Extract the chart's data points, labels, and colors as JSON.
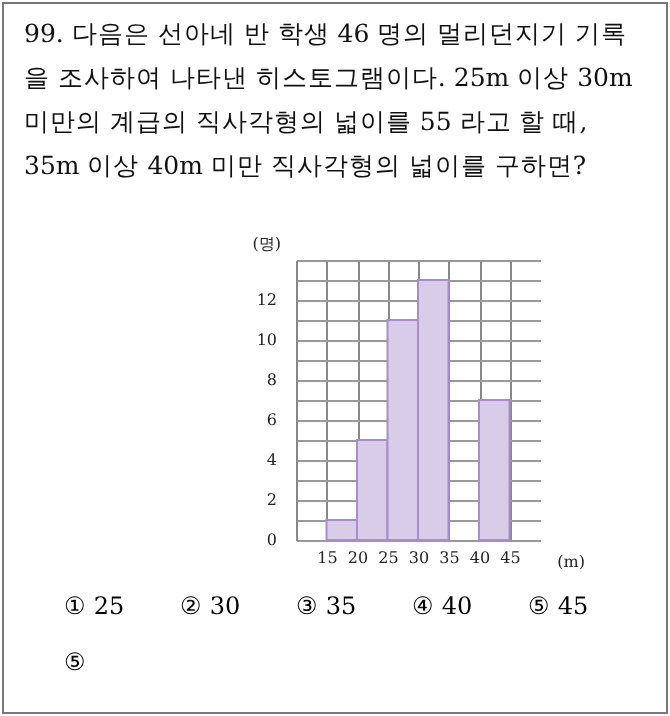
{
  "chart_data": {
    "type": "histogram",
    "title": "99. 다음은 선아네 반 학생 46 명의 멀리던지기 기록을 조사하여 나타낸 히스토그램이다. 25m 이상 30m 미만의 계급의 직사각형의 넓이를 55 라고 할 때, 35m 이상 40m 미만 직사각형의 넓이를 구하면?",
    "xlabel": "(m)",
    "ylabel": "(명)",
    "bins": [
      15,
      20,
      25,
      30,
      35,
      40,
      45
    ],
    "values": [
      1,
      5,
      11,
      13,
      null,
      7
    ],
    "color": "#d9cce8",
    "xlim": [
      10,
      50
    ],
    "xticks": [
      15,
      20,
      25,
      30,
      35,
      40,
      45
    ],
    "ylim": [
      0,
      14
    ],
    "yticks": [
      0,
      {
        "value": 1,
        "label": null
      },
      2,
      {
        "value": 3,
        "label": null
      },
      4,
      {
        "value": 5,
        "label": null
      },
      6,
      {
        "value": 7,
        "label": null
      },
      8,
      {
        "value": 9,
        "label": null
      },
      10,
      {
        "value": 11,
        "label": null
      },
      12,
      {
        "value": 13,
        "label": null
      },
      {
        "value": 14,
        "label": null
      }
    ],
    "grid": true,
    "annotations": [
      "① 25",
      "② 30",
      "③ 35",
      "④ 40",
      "⑤ 45",
      "⑤"
    ]
  }
}
